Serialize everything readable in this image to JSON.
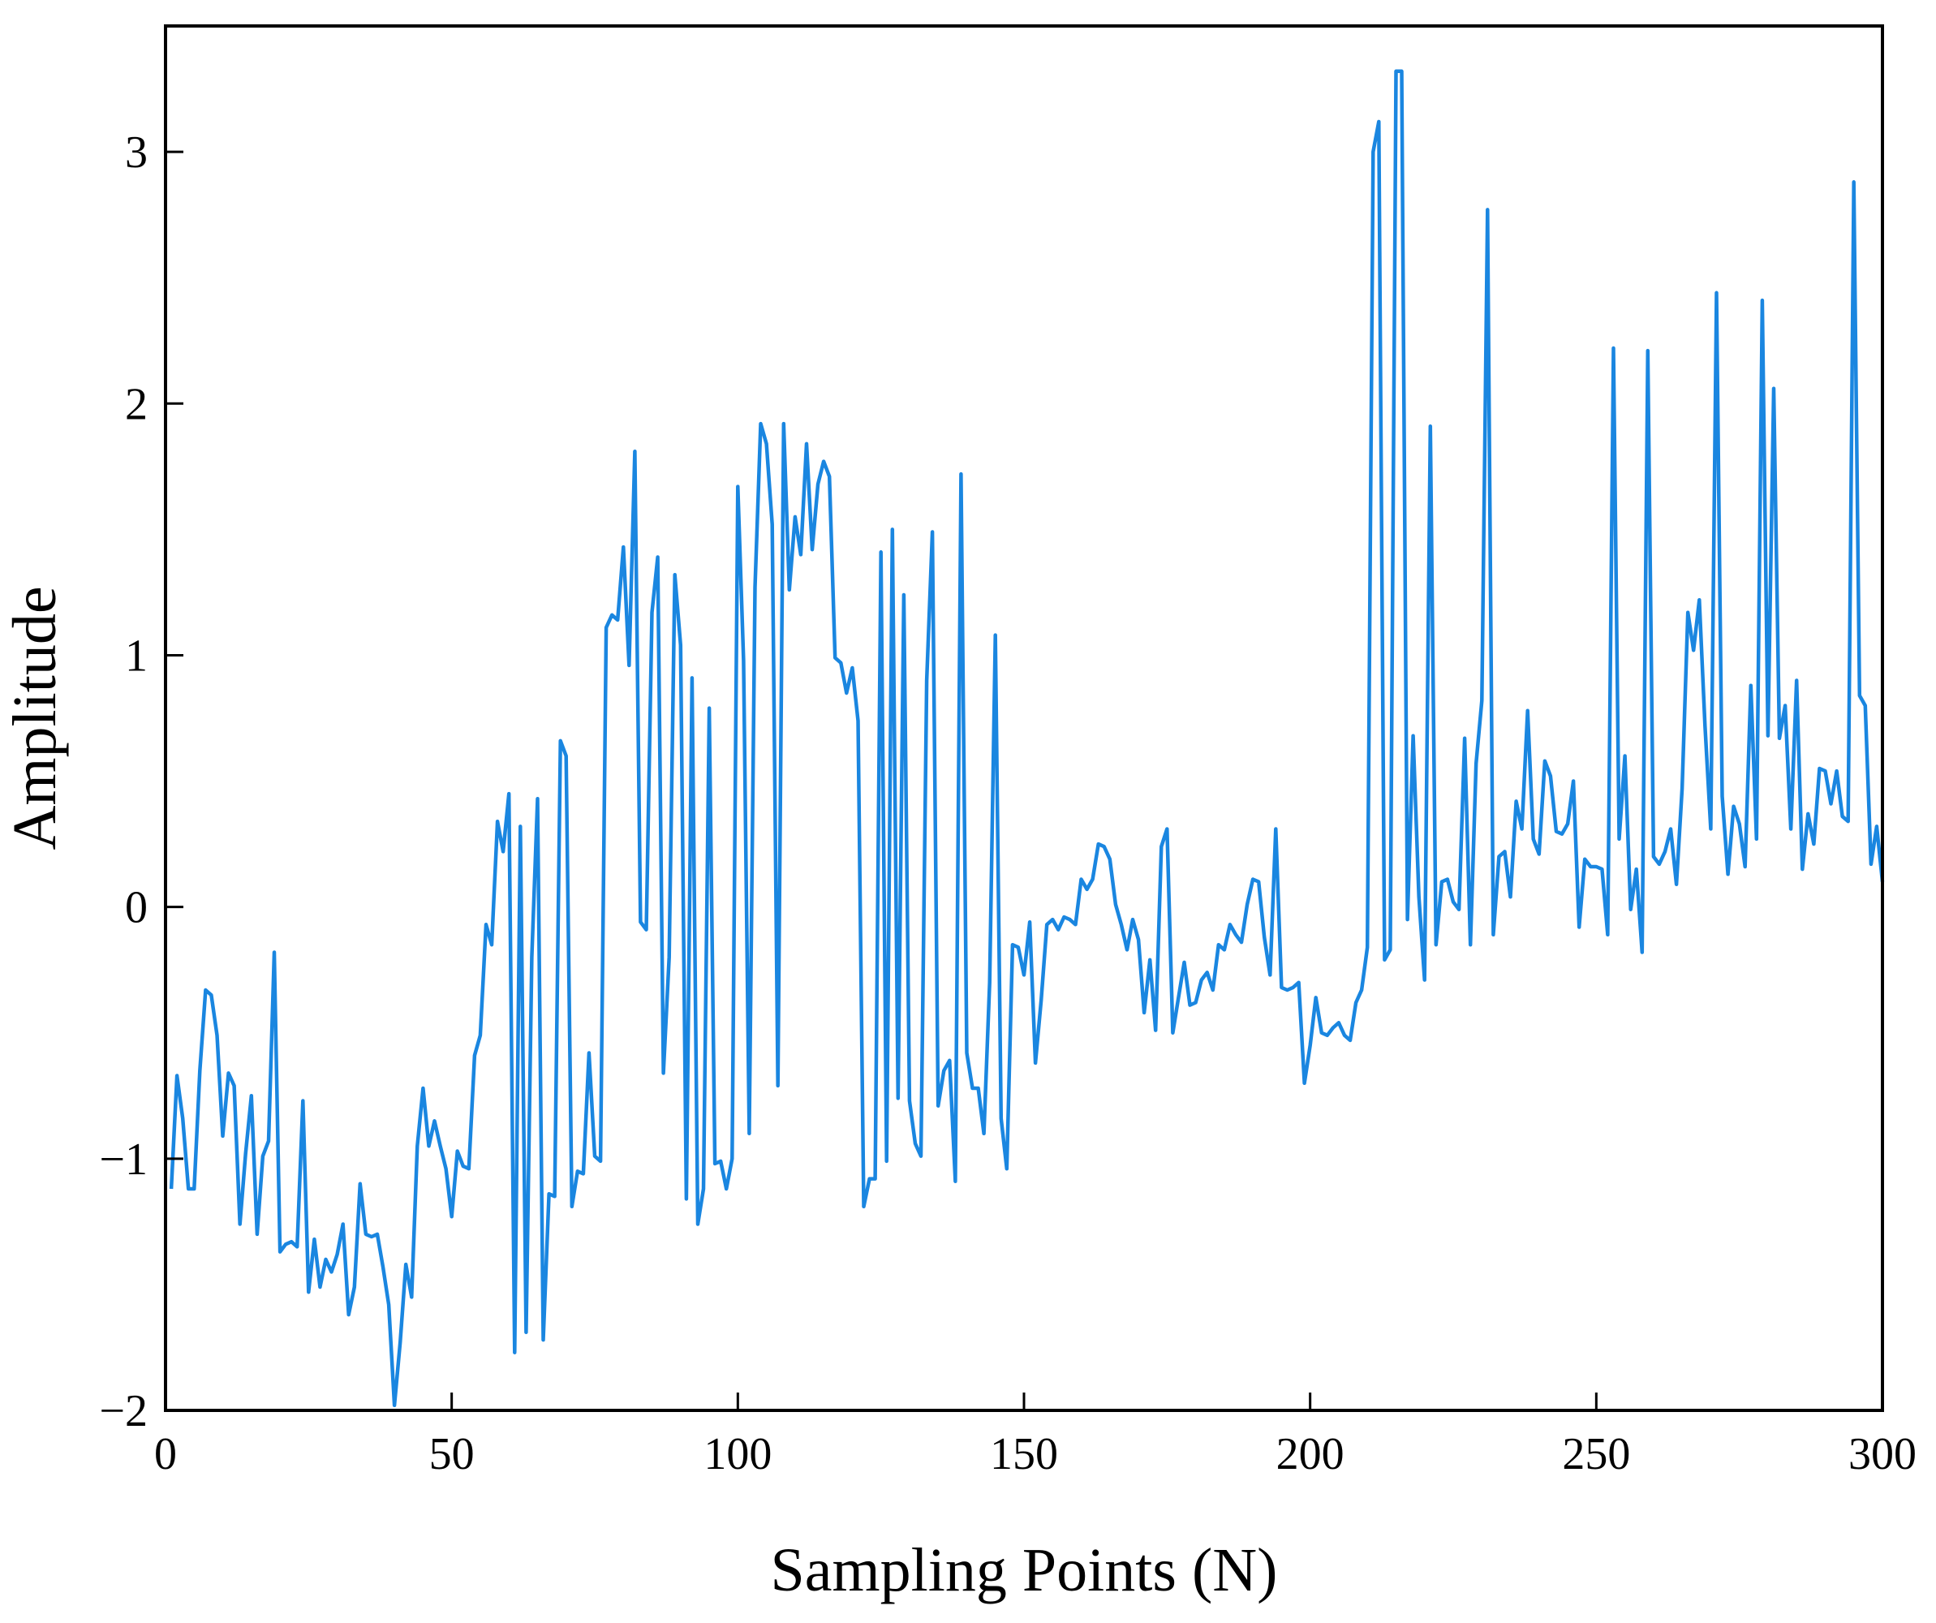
{
  "chart_data": {
    "type": "line",
    "title": "",
    "xlabel": "Sampling Points (N)",
    "ylabel": "Amplitude",
    "xlim": [
      0,
      300
    ],
    "ylim": [
      -2,
      3.5
    ],
    "xticks": [
      0,
      50,
      100,
      150,
      200,
      250,
      300
    ],
    "yticks": [
      -2,
      -1,
      0,
      1,
      2,
      3
    ],
    "xtick_labels": [
      "0",
      "50",
      "100",
      "150",
      "200",
      "250",
      "300"
    ],
    "ytick_labels": [
      "−2",
      "−1",
      "0",
      "1",
      "2",
      "3"
    ],
    "grid": false,
    "legend": "none",
    "line_color": "#1a86e0",
    "series": [
      {
        "values": [
          -1.12,
          -0.67,
          -0.84,
          -1.12,
          -1.12,
          -0.65,
          -0.33,
          -0.35,
          -0.51,
          -0.91,
          -0.66,
          -0.71,
          -1.26,
          -0.98,
          -0.75,
          -1.3,
          -0.99,
          -0.93,
          -0.18,
          -1.37,
          -1.34,
          -1.33,
          -1.35,
          -0.77,
          -1.53,
          -1.32,
          -1.51,
          -1.4,
          -1.45,
          -1.38,
          -1.26,
          -1.62,
          -1.51,
          -1.1,
          -1.3,
          -1.31,
          -1.3,
          -1.43,
          -1.58,
          -1.98,
          -1.73,
          -1.42,
          -1.55,
          -0.95,
          -0.72,
          -0.95,
          -0.85,
          -0.95,
          -1.04,
          -1.23,
          -0.97,
          -1.03,
          -1.04,
          -0.59,
          -0.51,
          -0.07,
          -0.15,
          0.34,
          0.22,
          0.45,
          -1.77,
          0.32,
          -1.69,
          -0.2,
          0.43,
          -1.72,
          -1.14,
          -1.15,
          0.66,
          0.6,
          -1.19,
          -1.05,
          -1.06,
          -0.58,
          -0.99,
          -1.01,
          1.11,
          1.16,
          1.14,
          1.43,
          0.96,
          1.81,
          -0.06,
          -0.09,
          1.17,
          1.39,
          -0.66,
          -0.2,
          1.32,
          1.04,
          -1.16,
          0.91,
          -1.26,
          -1.12,
          0.79,
          -1.02,
          -1.01,
          -1.12,
          -1.0,
          1.67,
          0.98,
          -0.9,
          1.27,
          1.92,
          1.84,
          1.52,
          -0.71,
          1.92,
          1.26,
          1.55,
          1.4,
          1.84,
          1.42,
          1.68,
          1.77,
          1.71,
          0.99,
          0.97,
          0.85,
          0.95,
          0.74,
          -1.19,
          -1.08,
          -1.08,
          1.41,
          -1.01,
          1.5,
          -0.76,
          1.24,
          -0.77,
          -0.94,
          -0.99,
          0.9,
          1.49,
          -0.79,
          -0.65,
          -0.61,
          -1.09,
          1.72,
          -0.58,
          -0.72,
          -0.72,
          -0.9,
          -0.3,
          1.08,
          -0.84,
          -1.04,
          -0.15,
          -0.16,
          -0.27,
          -0.06,
          -0.62,
          -0.37,
          -0.07,
          -0.05,
          -0.09,
          -0.04,
          -0.05,
          -0.07,
          0.11,
          0.07,
          0.11,
          0.25,
          0.24,
          0.19,
          0.01,
          -0.07,
          -0.17,
          -0.05,
          -0.13,
          -0.42,
          -0.21,
          -0.49,
          0.24,
          0.31,
          -0.5,
          -0.36,
          -0.22,
          -0.39,
          -0.38,
          -0.29,
          -0.26,
          -0.33,
          -0.15,
          -0.17,
          -0.07,
          -0.11,
          -0.14,
          0.01,
          0.11,
          0.1,
          -0.12,
          -0.27,
          0.31,
          -0.32,
          -0.33,
          -0.32,
          -0.3,
          -0.7,
          -0.55,
          -0.36,
          -0.5,
          -0.51,
          -0.48,
          -0.46,
          -0.51,
          -0.53,
          -0.38,
          -0.33,
          -0.16,
          3.0,
          3.12,
          -0.21,
          -0.17,
          3.32,
          3.32,
          -0.05,
          0.68,
          0.04,
          -0.29,
          1.91,
          -0.15,
          0.1,
          0.11,
          0.02,
          -0.01,
          0.67,
          -0.15,
          0.57,
          0.82,
          2.77,
          -0.11,
          0.2,
          0.22,
          0.04,
          0.42,
          0.31,
          0.78,
          0.27,
          0.21,
          0.58,
          0.52,
          0.3,
          0.29,
          0.33,
          0.5,
          -0.08,
          0.19,
          0.16,
          0.16,
          0.15,
          -0.11,
          2.22,
          0.27,
          0.6,
          -0.01,
          0.15,
          -0.18,
          2.21,
          0.2,
          0.17,
          0.22,
          0.31,
          0.09,
          0.47,
          1.17,
          1.02,
          1.22,
          0.72,
          0.31,
          2.44,
          0.44,
          0.13,
          0.4,
          0.33,
          0.16,
          0.88,
          0.27,
          2.41,
          0.68,
          2.06,
          0.67,
          0.8,
          0.31,
          0.9,
          0.15,
          0.37,
          0.25,
          0.55,
          0.54,
          0.41,
          0.54,
          0.36,
          0.34,
          2.88,
          0.84,
          0.8,
          0.17,
          0.32,
          0.1
        ]
      }
    ]
  }
}
